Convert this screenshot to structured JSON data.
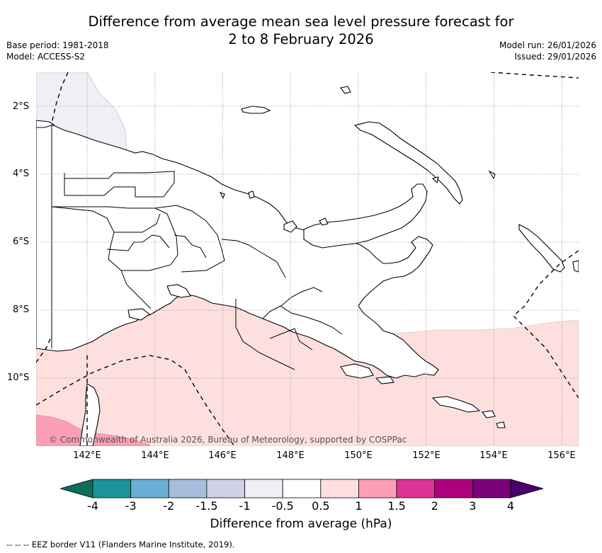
{
  "title_line1": "Difference from average mean sea level pressure forecast for",
  "title_line2": "2 to 8 February 2026",
  "base_period": "Base period: 1981-2018",
  "model": "Model: ACCESS-S2",
  "model_run": "Model run: 26/01/2026",
  "issued": "Issued: 29/01/2026",
  "lat_labels": [
    "2°S",
    "4°S",
    "6°S",
    "8°S",
    "10°S"
  ],
  "lon_labels": [
    "142°E",
    "144°E",
    "146°E",
    "148°E",
    "150°E",
    "152°E",
    "154°E",
    "156°E"
  ],
  "copyright": "© Commonwealth of Australia 2026, Bureau of Meteorology, supported by COSPPac",
  "colorbar": {
    "ticks": [
      "-4",
      "-3",
      "-2",
      "-1.5",
      "-1",
      "-0.5",
      "0.5",
      "1",
      "1.5",
      "2",
      "3",
      "4"
    ],
    "colors": [
      "#0e6e5e",
      "#1b9399",
      "#6aaed6",
      "#a6bddb",
      "#d0d1e6",
      "#f1eef6",
      "#ffffff",
      "#fde0dd",
      "#fa9fb5",
      "#dd3497",
      "#ae017e",
      "#7a0177",
      "#49006a"
    ],
    "title": "Difference from average (hPa)"
  },
  "footer": "--  --  -- EEZ border V11 (Flanders Marine Institute, 2019).",
  "map": {
    "lat_range": [
      -12,
      -1
    ],
    "lon_range": [
      140.5,
      156.5
    ],
    "grid_lats": [
      -2,
      -4,
      -6,
      -8,
      -10
    ],
    "grid_lons": [
      142,
      144,
      146,
      148,
      150,
      152,
      154,
      156
    ],
    "anomaly_zones": [
      {
        "label": "-0.5",
        "color": "#f1eef6"
      },
      {
        "label": "0.5",
        "color": "#fde0dd"
      },
      {
        "label": "1",
        "color": "#fa9fb5"
      }
    ]
  }
}
